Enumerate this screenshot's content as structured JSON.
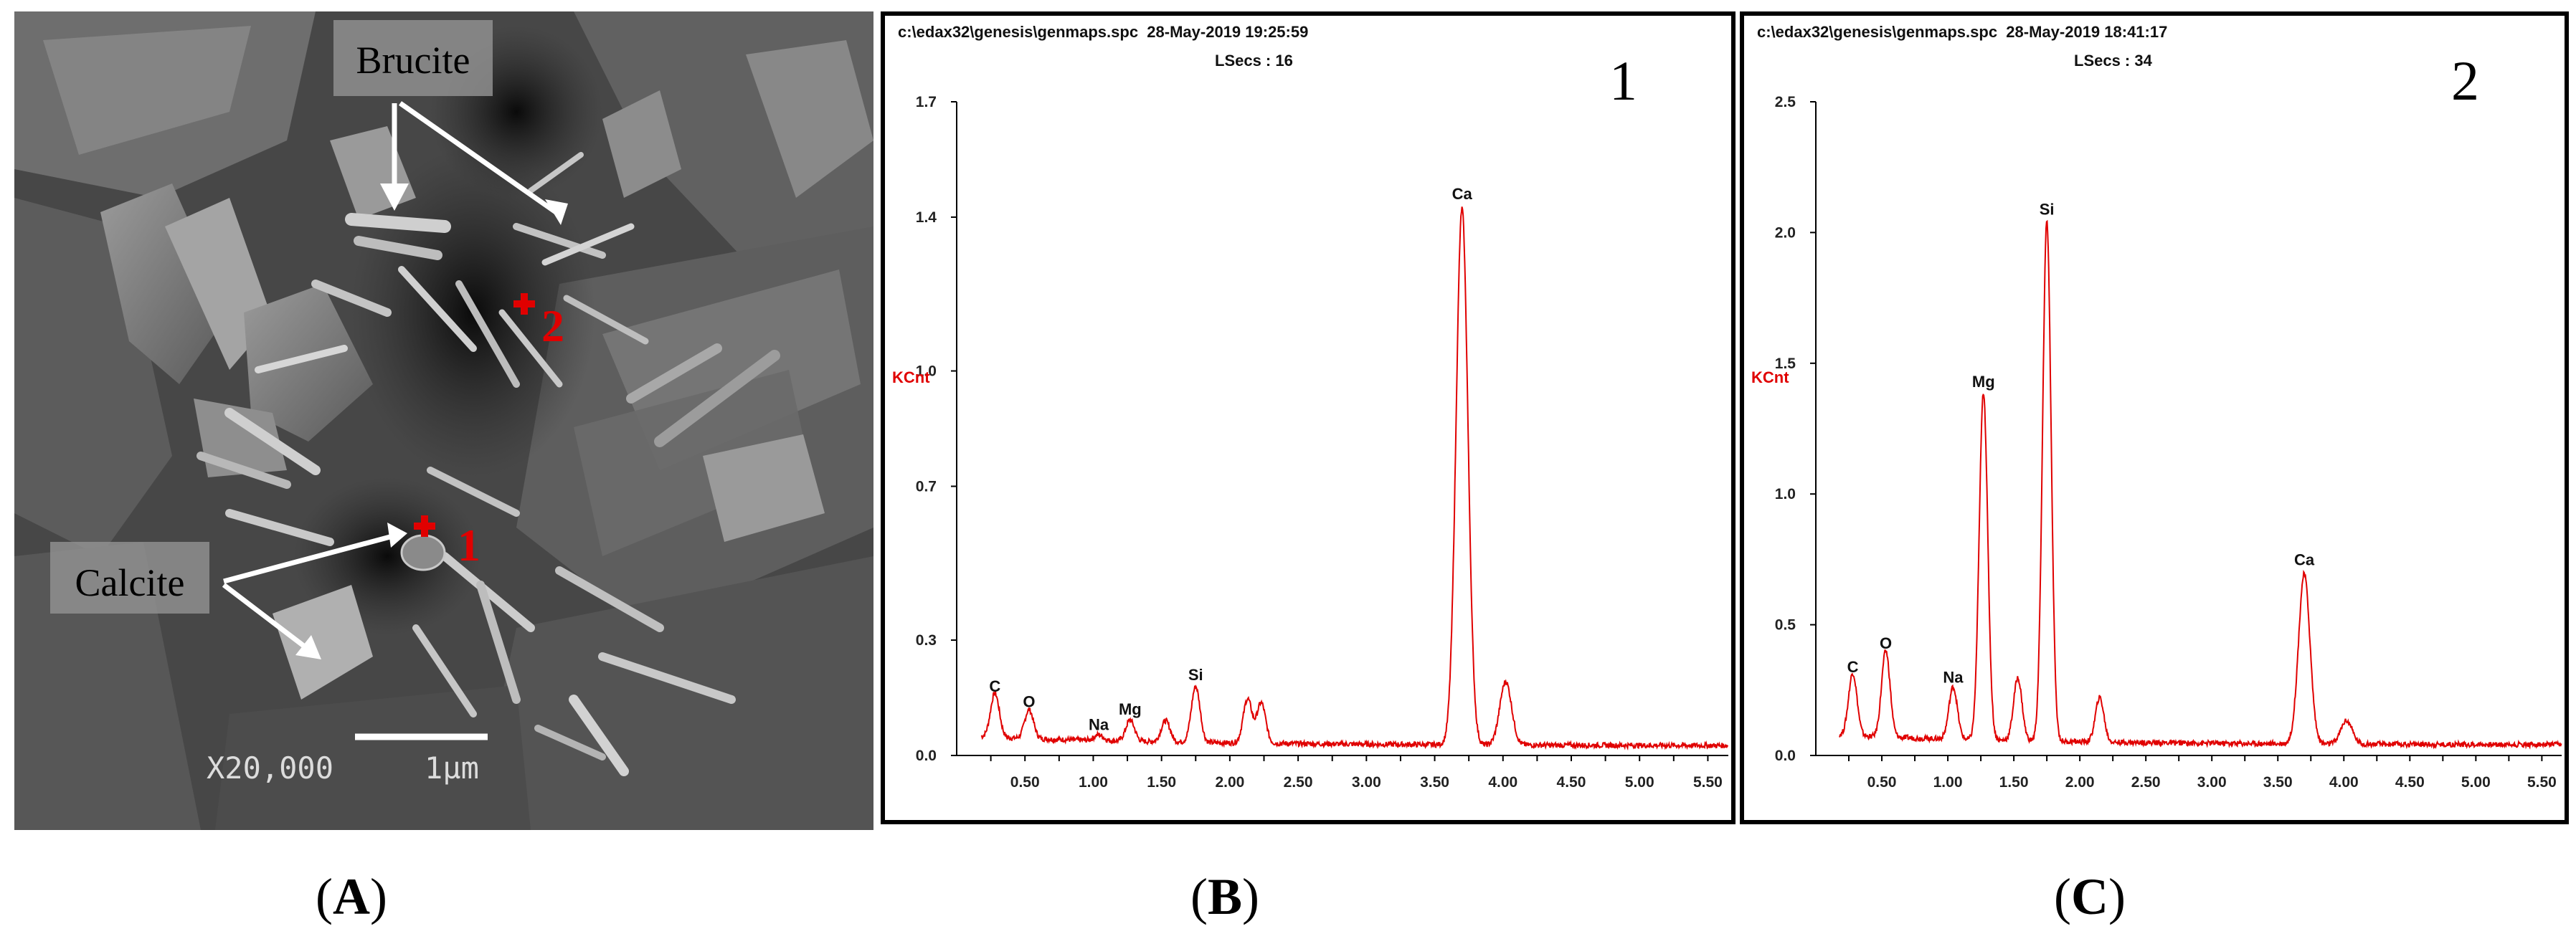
{
  "sem": {
    "labels": {
      "brucite": "Brucite",
      "calcite": "Calcite",
      "point1": "1",
      "point2": "2"
    },
    "scale_magnification": "X20,000",
    "scale_length": "1µm"
  },
  "captions": {
    "a": "A",
    "b": "B",
    "c": "C"
  },
  "colors": {
    "spectrum": "#e00000",
    "marker": "#e00000"
  },
  "chart_data": [
    {
      "type": "line",
      "header_path": "c:\\edax32\\genesis\\genmaps.spc",
      "header_date": "28-May-2019 19:25:59",
      "header_lsecs": "LSecs : 16",
      "number": "1",
      "ylabel": "KCnt",
      "xlabel": "",
      "xlim": [
        0,
        5.65
      ],
      "ylim": [
        0,
        1.7
      ],
      "yticks": [
        "0.0",
        "0.3",
        "0.7",
        "1.0",
        "1.4",
        "1.7"
      ],
      "xticks": [
        "0.50",
        "1.00",
        "1.50",
        "2.00",
        "2.50",
        "3.00",
        "3.50",
        "4.00",
        "4.50",
        "5.00",
        "5.50"
      ],
      "baseline": 0.025,
      "peaks": [
        {
          "element": "C",
          "x": 0.28,
          "y": 0.14
        },
        {
          "element": "O",
          "x": 0.53,
          "y": 0.1
        },
        {
          "element": "Na",
          "x": 1.04,
          "y": 0.04
        },
        {
          "element": "Mg",
          "x": 1.27,
          "y": 0.08
        },
        {
          "element": "",
          "x": 1.53,
          "y": 0.08
        },
        {
          "element": "Si",
          "x": 1.75,
          "y": 0.17
        },
        {
          "element": "",
          "x": 2.13,
          "y": 0.14
        },
        {
          "element": "",
          "x": 2.23,
          "y": 0.13
        },
        {
          "element": "Ca",
          "x": 3.7,
          "y": 1.42
        },
        {
          "element": "",
          "x": 4.02,
          "y": 0.19
        }
      ]
    },
    {
      "type": "line",
      "header_path": "c:\\edax32\\genesis\\genmaps.spc",
      "header_date": "28-May-2019 18:41:17",
      "header_lsecs": "LSecs : 34",
      "number": "2",
      "ylabel": "KCnt",
      "xlabel": "",
      "xlim": [
        0,
        5.65
      ],
      "ylim": [
        0,
        2.5
      ],
      "yticks": [
        "0.0",
        "0.5",
        "1.0",
        "1.5",
        "2.0",
        "2.5"
      ],
      "xticks": [
        "0.50",
        "1.00",
        "1.50",
        "2.00",
        "2.50",
        "3.00",
        "3.50",
        "4.00",
        "4.50",
        "5.00",
        "5.50"
      ],
      "baseline": 0.04,
      "peaks": [
        {
          "element": "C",
          "x": 0.28,
          "y": 0.28
        },
        {
          "element": "O",
          "x": 0.53,
          "y": 0.37
        },
        {
          "element": "Na",
          "x": 1.04,
          "y": 0.24
        },
        {
          "element": "Mg",
          "x": 1.27,
          "y": 1.37
        },
        {
          "element": "",
          "x": 1.53,
          "y": 0.28
        },
        {
          "element": "Si",
          "x": 1.75,
          "y": 2.03
        },
        {
          "element": "",
          "x": 2.15,
          "y": 0.21
        },
        {
          "element": "Ca",
          "x": 3.7,
          "y": 0.69
        },
        {
          "element": "",
          "x": 4.02,
          "y": 0.13
        }
      ]
    }
  ]
}
